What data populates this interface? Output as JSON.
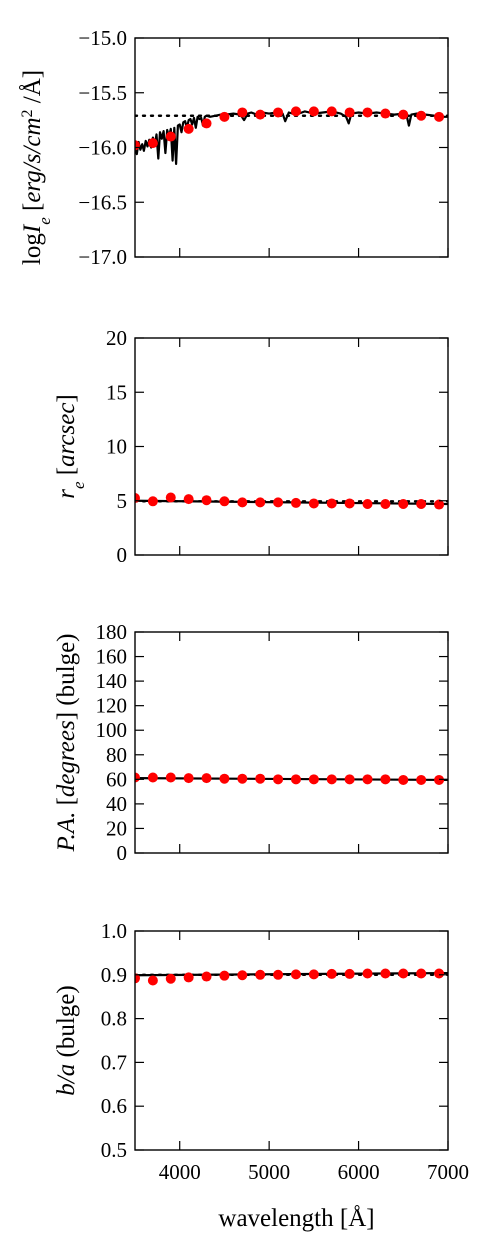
{
  "chart_data": [
    {
      "type": "line",
      "ylabel": "logI_e [erg/s/cm^2 /Å]",
      "ylabel_parts": {
        "pre": "log",
        "sym": "I",
        "sub": "e",
        "open": " [",
        "units": "erg/s/cm",
        "sup": "2",
        "close": " /Å]"
      },
      "xlim": [
        3500,
        7000
      ],
      "ylim": [
        -17.0,
        -15.0
      ],
      "yticks": [
        -17.0,
        -16.5,
        -16.0,
        -15.5,
        -15.0
      ],
      "ytick_labels": [
        "−17.0",
        "−16.5",
        "−16.0",
        "−15.5",
        "−15.0"
      ],
      "reference_line": {
        "style": "dotted",
        "y": -15.71
      },
      "spectrum": {
        "x": [
          3500,
          3520,
          3540,
          3560,
          3580,
          3600,
          3620,
          3640,
          3660,
          3680,
          3700,
          3720,
          3740,
          3760,
          3780,
          3800,
          3820,
          3840,
          3860,
          3880,
          3900,
          3920,
          3940,
          3960,
          3980,
          4000,
          4020,
          4040,
          4060,
          4080,
          4100,
          4120,
          4140,
          4160,
          4180,
          4200,
          4220,
          4240,
          4260,
          4280,
          4300,
          4340,
          4400,
          4460,
          4520,
          4600,
          4680,
          4720,
          4760,
          4800,
          4860,
          4920,
          5000,
          5080,
          5150,
          5180,
          5220,
          5300,
          5400,
          5500,
          5600,
          5700,
          5800,
          5860,
          5890,
          5920,
          6000,
          6100,
          6200,
          6300,
          6400,
          6500,
          6540,
          6563,
          6590,
          6650,
          6750,
          6850,
          6950,
          7000
        ],
        "y": [
          -15.98,
          -16.06,
          -15.95,
          -16.02,
          -15.97,
          -16.03,
          -15.94,
          -15.99,
          -15.93,
          -16.0,
          -15.91,
          -15.98,
          -15.88,
          -16.1,
          -15.86,
          -15.92,
          -15.85,
          -16.05,
          -15.84,
          -15.9,
          -15.83,
          -16.12,
          -15.82,
          -16.15,
          -15.8,
          -15.79,
          -15.86,
          -15.77,
          -15.76,
          -15.82,
          -15.75,
          -15.74,
          -15.79,
          -15.73,
          -15.82,
          -15.72,
          -15.74,
          -15.73,
          -15.8,
          -15.72,
          -15.71,
          -15.72,
          -15.71,
          -15.7,
          -15.7,
          -15.69,
          -15.7,
          -15.75,
          -15.69,
          -15.68,
          -15.7,
          -15.68,
          -15.69,
          -15.68,
          -15.69,
          -15.76,
          -15.68,
          -15.7,
          -15.67,
          -15.69,
          -15.68,
          -15.67,
          -15.69,
          -15.72,
          -15.78,
          -15.69,
          -15.68,
          -15.69,
          -15.68,
          -15.69,
          -15.7,
          -15.69,
          -15.72,
          -15.8,
          -15.7,
          -15.69,
          -15.7,
          -15.71,
          -15.72,
          -15.72
        ]
      },
      "points": {
        "x": [
          3500,
          3700,
          3900,
          4100,
          4300,
          4500,
          4700,
          4900,
          5100,
          5300,
          5500,
          5700,
          5900,
          6100,
          6300,
          6500,
          6700,
          6900
        ],
        "y": [
          -15.98,
          -15.96,
          -15.9,
          -15.83,
          -15.78,
          -15.72,
          -15.68,
          -15.7,
          -15.68,
          -15.67,
          -15.67,
          -15.67,
          -15.68,
          -15.68,
          -15.69,
          -15.7,
          -15.71,
          -15.72
        ]
      },
      "point_color": "#ff0000",
      "line_color": "#000000"
    },
    {
      "type": "line",
      "ylabel": "r_e [arcsec]",
      "ylabel_parts": {
        "sym": "r",
        "sub": "e",
        "open": " [",
        "units": "arcsec",
        "close": "]"
      },
      "xlim": [
        3500,
        7000
      ],
      "ylim": [
        0,
        20
      ],
      "yticks": [
        0,
        5,
        10,
        15,
        20
      ],
      "ytick_labels": [
        "0",
        "5",
        "10",
        "15",
        "20"
      ],
      "fit_line": {
        "style": "solid",
        "x": [
          3500,
          7000
        ],
        "y": [
          5.0,
          4.7
        ]
      },
      "reference_line": {
        "style": "dotted",
        "y": 4.95
      },
      "points": {
        "x": [
          3500,
          3700,
          3900,
          4100,
          4300,
          4500,
          4700,
          4900,
          5100,
          5300,
          5500,
          5700,
          5900,
          6100,
          6300,
          6500,
          6700,
          6900
        ],
        "y": [
          5.25,
          4.95,
          5.3,
          5.15,
          5.05,
          4.95,
          4.85,
          4.85,
          4.85,
          4.8,
          4.75,
          4.75,
          4.75,
          4.7,
          4.7,
          4.7,
          4.7,
          4.65
        ]
      },
      "point_color": "#ff0000",
      "line_color": "#000000"
    },
    {
      "type": "line",
      "ylabel": "P.A. [degrees] (bulge)",
      "ylabel_parts": {
        "sym": "P.A.",
        "open": " [",
        "units": "degrees",
        "close": "]",
        "post": " (bulge)"
      },
      "xlim": [
        3500,
        7000
      ],
      "ylim": [
        0,
        180
      ],
      "yticks": [
        0,
        20,
        40,
        60,
        80,
        100,
        120,
        140,
        160,
        180
      ],
      "ytick_labels": [
        "0",
        "20",
        "40",
        "60",
        "80",
        "100",
        "120",
        "140",
        "160",
        "180"
      ],
      "fit_line": {
        "style": "solid",
        "x": [
          3500,
          7000
        ],
        "y": [
          61.0,
          59.5
        ]
      },
      "points": {
        "x": [
          3500,
          3700,
          3900,
          4100,
          4300,
          4500,
          4700,
          4900,
          5100,
          5300,
          5500,
          5700,
          5900,
          6100,
          6300,
          6500,
          6700,
          6900
        ],
        "y": [
          61.5,
          61.5,
          61.5,
          61.0,
          61.0,
          60.5,
          60.5,
          60.5,
          60.0,
          60.0,
          60.0,
          60.0,
          60.0,
          60.0,
          60.0,
          59.5,
          59.5,
          59.5
        ]
      },
      "point_color": "#ff0000",
      "line_color": "#000000"
    },
    {
      "type": "line",
      "ylabel": "b/a (bulge)",
      "ylabel_parts": {
        "sym": "b/a",
        "post": " (bulge)"
      },
      "xlabel": "wavelength [Å]",
      "xlim": [
        3500,
        7000
      ],
      "ylim": [
        0.5,
        1.0
      ],
      "yticks": [
        0.5,
        0.6,
        0.7,
        0.8,
        0.9,
        1.0
      ],
      "ytick_labels": [
        "0.5",
        "0.6",
        "0.7",
        "0.8",
        "0.9",
        "1.0"
      ],
      "xticks": [
        4000,
        5000,
        6000,
        7000
      ],
      "xtick_labels": [
        "4000",
        "5000",
        "6000",
        "7000"
      ],
      "fit_line": {
        "style": "solid",
        "x": [
          3500,
          7000
        ],
        "y": [
          0.899,
          0.904
        ]
      },
      "reference_line": {
        "style": "dotted",
        "y": 0.9
      },
      "points": {
        "x": [
          3500,
          3700,
          3900,
          4100,
          4300,
          4500,
          4700,
          4900,
          5100,
          5300,
          5500,
          5700,
          5900,
          6100,
          6300,
          6500,
          6700,
          6900
        ],
        "y": [
          0.892,
          0.887,
          0.891,
          0.894,
          0.896,
          0.898,
          0.899,
          0.9,
          0.9,
          0.901,
          0.901,
          0.902,
          0.902,
          0.903,
          0.903,
          0.903,
          0.903,
          0.903
        ]
      },
      "point_color": "#ff0000",
      "line_color": "#000000"
    }
  ]
}
